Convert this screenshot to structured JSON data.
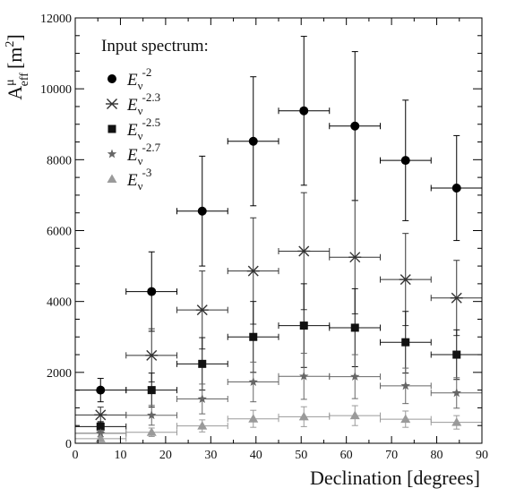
{
  "chart_data": {
    "type": "scatter",
    "title": "",
    "xlabel": "Declination [degrees]",
    "ylabel": {
      "base": "A",
      "superscript": "μ",
      "subscript": "eff",
      "unit_open": "[m",
      "unit_sup": "2",
      "unit_close": "]"
    },
    "xlim": [
      0,
      90
    ],
    "ylim": [
      0,
      12000
    ],
    "xticks": [
      0,
      10,
      20,
      30,
      40,
      50,
      60,
      70,
      80,
      90
    ],
    "yticks": [
      0,
      2000,
      4000,
      6000,
      8000,
      10000,
      12000
    ],
    "grid": false,
    "legend": {
      "title": "Input spectrum:",
      "placement": "top-left"
    },
    "x_bins": [
      {
        "x": 5.6,
        "lo": 0,
        "hi": 11.25
      },
      {
        "x": 16.9,
        "lo": 11.25,
        "hi": 22.5
      },
      {
        "x": 28.1,
        "lo": 22.5,
        "hi": 33.75
      },
      {
        "x": 39.4,
        "lo": 33.75,
        "hi": 45
      },
      {
        "x": 50.6,
        "lo": 45,
        "hi": 56.25
      },
      {
        "x": 61.9,
        "lo": 56.25,
        "hi": 67.5
      },
      {
        "x": 73.1,
        "lo": 67.5,
        "hi": 78.75
      },
      {
        "x": 84.4,
        "lo": 78.75,
        "hi": 90
      }
    ],
    "series": [
      {
        "label": {
          "base": "E",
          "sub": "ν",
          "sup": "-2"
        },
        "marker": "circle",
        "color": "#000000",
        "y": [
          1500,
          4280,
          6550,
          8520,
          9380,
          8950,
          7980,
          7200
        ],
        "err": [
          330,
          1120,
          1550,
          1820,
          2100,
          2100,
          1700,
          1480
        ]
      },
      {
        "label": {
          "base": "E",
          "sub": "ν",
          "sup": "-2.3"
        },
        "marker": "star-x",
        "color": "#333333",
        "y": [
          800,
          2480,
          3760,
          4860,
          5420,
          5250,
          4620,
          4100
        ],
        "err": [
          220,
          750,
          1100,
          1500,
          1650,
          1600,
          1300,
          1060
        ]
      },
      {
        "label": {
          "base": "E",
          "sub": "ν",
          "sup": "-2.5"
        },
        "marker": "square",
        "color": "#111111",
        "y": [
          470,
          1500,
          2240,
          3000,
          3320,
          3260,
          2850,
          2500
        ],
        "err": [
          140,
          480,
          740,
          1000,
          1180,
          1100,
          870,
          700
        ]
      },
      {
        "label": {
          "base": "E",
          "sub": "ν",
          "sup": "-2.7"
        },
        "marker": "star",
        "color": "#666666",
        "y": [
          280,
          790,
          1250,
          1730,
          1890,
          1880,
          1620,
          1420
        ],
        "err": [
          90,
          280,
          420,
          560,
          650,
          620,
          500,
          430
        ]
      },
      {
        "label": {
          "base": "E",
          "sub": "ν",
          "sup": "-3"
        },
        "marker": "triangle",
        "color": "#9a9a9a",
        "y": [
          130,
          310,
          490,
          690,
          750,
          780,
          680,
          590
        ],
        "err": [
          45,
          120,
          170,
          240,
          280,
          280,
          230,
          190
        ]
      }
    ]
  }
}
